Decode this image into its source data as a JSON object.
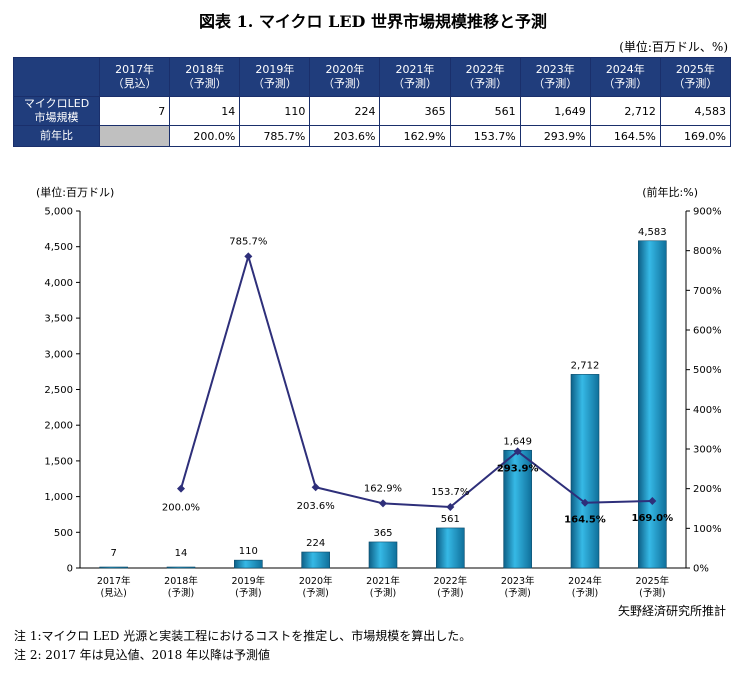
{
  "title": "図表 1.  マイクロ LED 世界市場規模推移と予測",
  "table": {
    "unit": "(単位:百万ドル、%)",
    "headers": [
      {
        "year": "2017年",
        "note": "（見込）"
      },
      {
        "year": "2018年",
        "note": "（予測）"
      },
      {
        "year": "2019年",
        "note": "（予測）"
      },
      {
        "year": "2020年",
        "note": "（予測）"
      },
      {
        "year": "2021年",
        "note": "（予測）"
      },
      {
        "year": "2022年",
        "note": "（予測）"
      },
      {
        "year": "2023年",
        "note": "（予測）"
      },
      {
        "year": "2024年",
        "note": "（予測）"
      },
      {
        "year": "2025年",
        "note": "（予測）"
      }
    ],
    "rows": [
      {
        "label_line1": "マイクロLED",
        "label_line2": "市場規模",
        "values": [
          "7",
          "14",
          "110",
          "224",
          "365",
          "561",
          "1,649",
          "2,712",
          "4,583"
        ]
      },
      {
        "label_line1": "前年比",
        "label_line2": "",
        "values": [
          "",
          "200.0%",
          "785.7%",
          "203.6%",
          "162.9%",
          "153.7%",
          "293.9%",
          "164.5%",
          "169.0%"
        ]
      }
    ]
  },
  "chart_data": {
    "type": "bar",
    "categories": [
      "2017年\n(見込)",
      "2018年\n(予測)",
      "2019年\n(予測)",
      "2020年\n(予測)",
      "2021年\n(予測)",
      "2022年\n(予測)",
      "2023年\n(予測)",
      "2024年\n(予測)",
      "2025年\n(予測)"
    ],
    "series": [
      {
        "values": [
          7,
          14,
          110,
          224,
          365,
          561,
          1649,
          2712,
          4583
        ],
        "labels": [
          "7",
          "14",
          "110",
          "224",
          "365",
          "561",
          "1,649",
          "2,712",
          "4,583"
        ],
        "axis": "left",
        "type": "bar",
        "color": "#1d9ac7"
      },
      {
        "values": [
          null,
          200.0,
          785.7,
          203.6,
          162.9,
          153.7,
          293.9,
          164.5,
          169.0
        ],
        "labels": [
          "",
          "200.0%",
          "785.7%",
          "203.6%",
          "162.9%",
          "153.7%",
          "293.9%",
          "164.5%",
          "169.0%"
        ],
        "axis": "right",
        "type": "line",
        "color": "#2e2f7a"
      }
    ],
    "ylabel": "(単位:百万ドル)",
    "y2label": "(前年比:%)",
    "ylim": [
      0,
      5000
    ],
    "y2lim": [
      0,
      900
    ],
    "yticks": [
      "0",
      "500",
      "1,000",
      "1,500",
      "2,000",
      "2,500",
      "3,000",
      "3,500",
      "4,000",
      "4,500",
      "5,000"
    ],
    "y2ticks": [
      "0%",
      "100%",
      "200%",
      "300%",
      "400%",
      "500%",
      "600%",
      "700%",
      "800%",
      "900%"
    ],
    "grid": false,
    "source": "矢野経済研究所推計"
  },
  "footnotes": [
    "注 1:マイクロ LED 光源と実装工程におけるコストを推定し、市場規模を算出した。",
    "注 2: 2017 年は見込値、2018 年以降は予測値"
  ]
}
